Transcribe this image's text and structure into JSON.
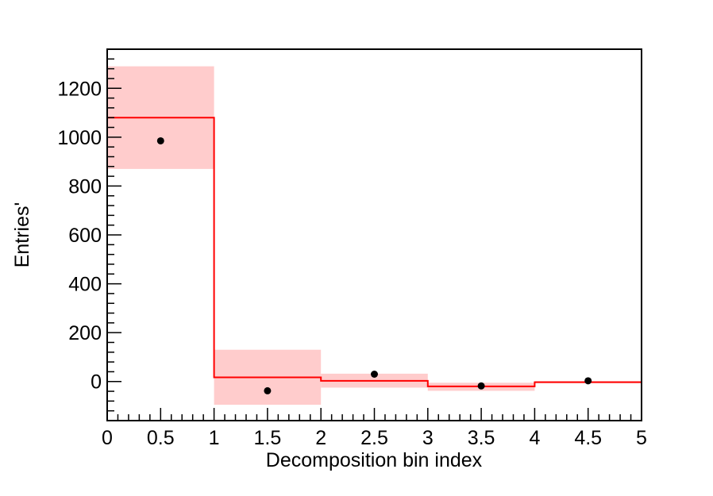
{
  "chart_data": {
    "type": "bar",
    "xlabel": "Decomposition bin index",
    "ylabel": "Entries'",
    "xlim": [
      0,
      5
    ],
    "ylim": [
      -160,
      1360
    ],
    "x_ticks": [
      "0",
      "0.5",
      "1",
      "1.5",
      "2",
      "2.5",
      "3",
      "3.5",
      "4",
      "4.5",
      "5"
    ],
    "y_ticks": [
      "0",
      "200",
      "400",
      "600",
      "800",
      "1000",
      "1200"
    ],
    "bin_edges": [
      0,
      1,
      2,
      3,
      4,
      5
    ],
    "series": [
      {
        "role": "histogram",
        "style": "step",
        "values": [
          1080,
          17,
          3,
          -20,
          -3
        ],
        "band_low": [
          870,
          -95,
          -25,
          -38,
          -5
        ],
        "band_high": [
          1290,
          130,
          32,
          -5,
          2
        ]
      },
      {
        "role": "points",
        "style": "markers",
        "x": [
          0.5,
          1.5,
          2.5,
          3.5,
          4.5
        ],
        "values": [
          985,
          -38,
          30,
          -18,
          3
        ]
      }
    ],
    "colors": {
      "line": "#ff0000",
      "band": "#ffcccc",
      "points": "#000000",
      "frame": "#000000"
    },
    "grid": false,
    "legend": "none"
  }
}
